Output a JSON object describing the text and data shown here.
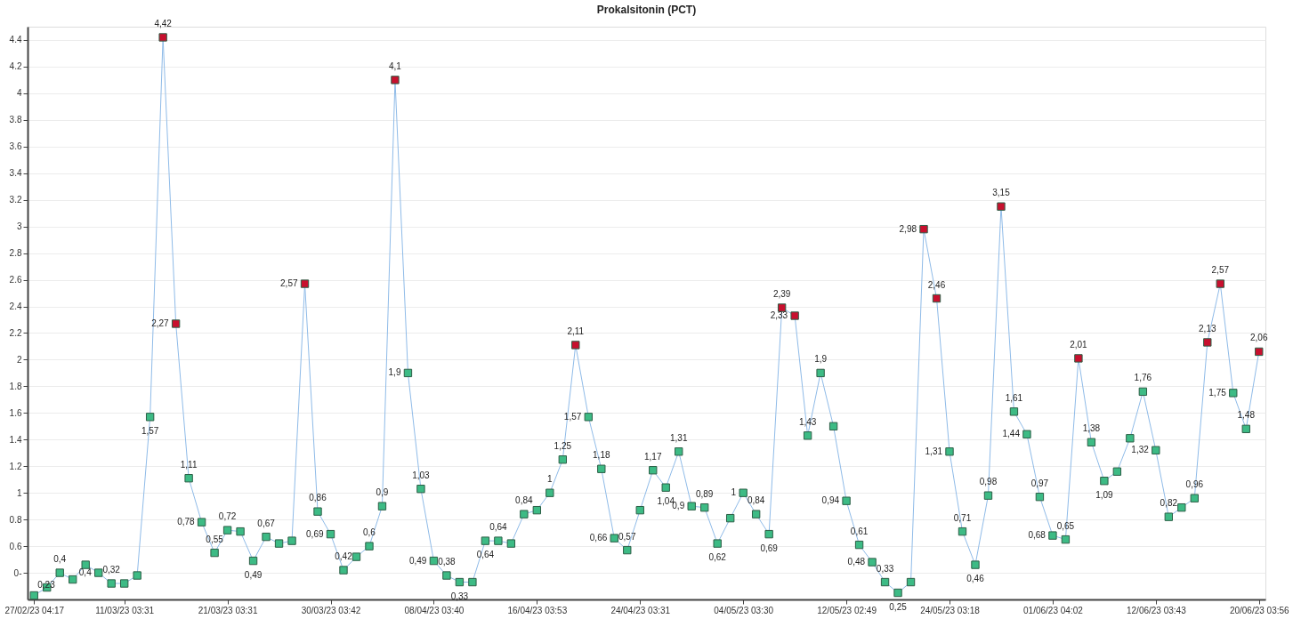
{
  "chart_data": {
    "type": "line",
    "title": "Prokalsitonin (PCT)",
    "categories": [
      "27/02/23 04:17",
      null,
      null,
      null,
      null,
      null,
      null,
      "11/03/23 03:31",
      null,
      null,
      null,
      null,
      null,
      null,
      null,
      "21/03/23 03:31",
      null,
      null,
      null,
      null,
      null,
      null,
      null,
      "30/03/23 03:42",
      null,
      null,
      null,
      null,
      null,
      null,
      null,
      "08/04/23 03:40",
      null,
      null,
      null,
      null,
      null,
      null,
      null,
      "16/04/23 03:53",
      null,
      null,
      null,
      null,
      null,
      null,
      null,
      "24/04/23 03:31",
      null,
      null,
      null,
      null,
      null,
      null,
      null,
      "04/05/23 03:30",
      null,
      null,
      null,
      null,
      null,
      null,
      null,
      "12/05/23 02:49",
      null,
      null,
      null,
      null,
      null,
      null,
      null,
      "24/05/23 03:18",
      null,
      null,
      null,
      null,
      null,
      null,
      null,
      "01/06/23 04:02",
      null,
      null,
      null,
      null,
      null,
      null,
      null,
      "12/06/23 03:43",
      null,
      null,
      null,
      null,
      null,
      null,
      null,
      "20/06/23 03:56"
    ],
    "series": [
      {
        "color": "#8fbbe8",
        "values": [
          0.23,
          0.29,
          0.4,
          0.35,
          0.46,
          0.4,
          0.32,
          0.32,
          0.38,
          1.57,
          4.42,
          2.27,
          1.11,
          0.78,
          0.55,
          0.72,
          0.71,
          0.49,
          0.67,
          0.62,
          0.64,
          2.57,
          0.86,
          0.69,
          0.42,
          0.52,
          0.6,
          0.9,
          4.1,
          1.9,
          1.03,
          0.49,
          0.38,
          0.33,
          0.33,
          0.64,
          0.64,
          0.62,
          0.84,
          0.87,
          1,
          1.25,
          2.11,
          1.57,
          1.18,
          0.66,
          0.57,
          0.87,
          1.17,
          1.04,
          1.31,
          0.9,
          0.89,
          0.62,
          0.81,
          1,
          0.84,
          0.69,
          2.39,
          2.33,
          1.43,
          1.9,
          1.5,
          0.94,
          0.61,
          0.48,
          0.33,
          0.25,
          0.33,
          2.98,
          2.46,
          1.31,
          0.71,
          0.46,
          0.98,
          3.15,
          1.61,
          1.44,
          0.97,
          0.68,
          0.65,
          2.01,
          1.38,
          1.09,
          1.16,
          1.41,
          1.76,
          1.32,
          0.82,
          0.89,
          0.96,
          2.13,
          2.57,
          1.75,
          1.48,
          2.06
        ],
        "value_labels": [
          "0,23",
          null,
          "0,4",
          null,
          null,
          "0,4",
          "0,32",
          null,
          null,
          "1,57",
          "4,42",
          "2,27",
          "1,11",
          "0,78",
          "0,55",
          "0,72",
          null,
          "0,49",
          "0,67",
          null,
          null,
          "2,57",
          "0,86",
          "0,69",
          "0,42",
          null,
          "0,6",
          "0,9",
          "4,1",
          "1,9",
          "1,03",
          "0,49",
          "0,38",
          "0,33",
          null,
          "0,64",
          "0,64",
          null,
          "0,84",
          null,
          "1",
          "1,25",
          "2,11",
          "1,57",
          "1,18",
          "0,66",
          "0,57",
          null,
          "1,17",
          "1,04",
          "1,31",
          "0,9",
          "0,89",
          "0,62",
          null,
          "1",
          "0,84",
          "0,69",
          "2,39",
          "2,33",
          "1,43",
          "1,9",
          null,
          "0,94",
          "0,61",
          "0,48",
          "0,33",
          "0,25",
          null,
          "2,98",
          "2,46",
          "1,31",
          "0,71",
          "0,46",
          "0,98",
          "3,15",
          "1,61",
          "1,44",
          "0,97",
          "0,68",
          "0,65",
          "2,01",
          "1,38",
          "1,09",
          null,
          null,
          "1,76",
          "1,32",
          "0,82",
          null,
          "0,96",
          "2,13",
          "2,57",
          "1,75",
          "1,48",
          "2,06"
        ],
        "colors": [
          "#3dbb85",
          "#3dbb85",
          "#3dbb85",
          "#3dbb85",
          "#3dbb85",
          "#3dbb85",
          "#3dbb85",
          "#3dbb85",
          "#3dbb85",
          "#3dbb85",
          "#c8102e",
          "#c8102e",
          "#3dbb85",
          "#3dbb85",
          "#3dbb85",
          "#3dbb85",
          "#3dbb85",
          "#3dbb85",
          "#3dbb85",
          "#3dbb85",
          "#3dbb85",
          "#c8102e",
          "#3dbb85",
          "#3dbb85",
          "#3dbb85",
          "#3dbb85",
          "#3dbb85",
          "#3dbb85",
          "#c8102e",
          "#3dbb85",
          "#3dbb85",
          "#3dbb85",
          "#3dbb85",
          "#3dbb85",
          "#3dbb85",
          "#3dbb85",
          "#3dbb85",
          "#3dbb85",
          "#3dbb85",
          "#3dbb85",
          "#3dbb85",
          "#3dbb85",
          "#c8102e",
          "#3dbb85",
          "#3dbb85",
          "#3dbb85",
          "#3dbb85",
          "#3dbb85",
          "#3dbb85",
          "#3dbb85",
          "#3dbb85",
          "#3dbb85",
          "#3dbb85",
          "#3dbb85",
          "#3dbb85",
          "#3dbb85",
          "#3dbb85",
          "#3dbb85",
          "#c8102e",
          "#c8102e",
          "#3dbb85",
          "#3dbb85",
          "#3dbb85",
          "#3dbb85",
          "#3dbb85",
          "#3dbb85",
          "#3dbb85",
          "#3dbb85",
          "#3dbb85",
          "#c8102e",
          "#c8102e",
          "#3dbb85",
          "#3dbb85",
          "#3dbb85",
          "#3dbb85",
          "#c8102e",
          "#3dbb85",
          "#3dbb85",
          "#3dbb85",
          "#3dbb85",
          "#3dbb85",
          "#c8102e",
          "#3dbb85",
          "#3dbb85",
          "#3dbb85",
          "#3dbb85",
          "#3dbb85",
          "#3dbb85",
          "#3dbb85",
          "#3dbb85",
          "#3dbb85",
          "#c8102e",
          "#c8102e",
          "#3dbb85",
          "#3dbb85",
          "#c8102e"
        ]
      }
    ],
    "ylim": [
      0.2,
      4.5
    ],
    "yticks": [
      {
        "value": 0.4,
        "label": "0-"
      },
      0.6,
      0.8,
      1,
      1.2,
      1.4,
      1.6,
      1.8,
      2,
      2.2,
      2.4,
      2.6,
      2.8,
      3,
      3.2,
      3.4,
      3.6,
      3.8,
      4,
      4.2,
      4.4
    ],
    "grid": "y",
    "marker": "square",
    "line_style": "solid"
  }
}
